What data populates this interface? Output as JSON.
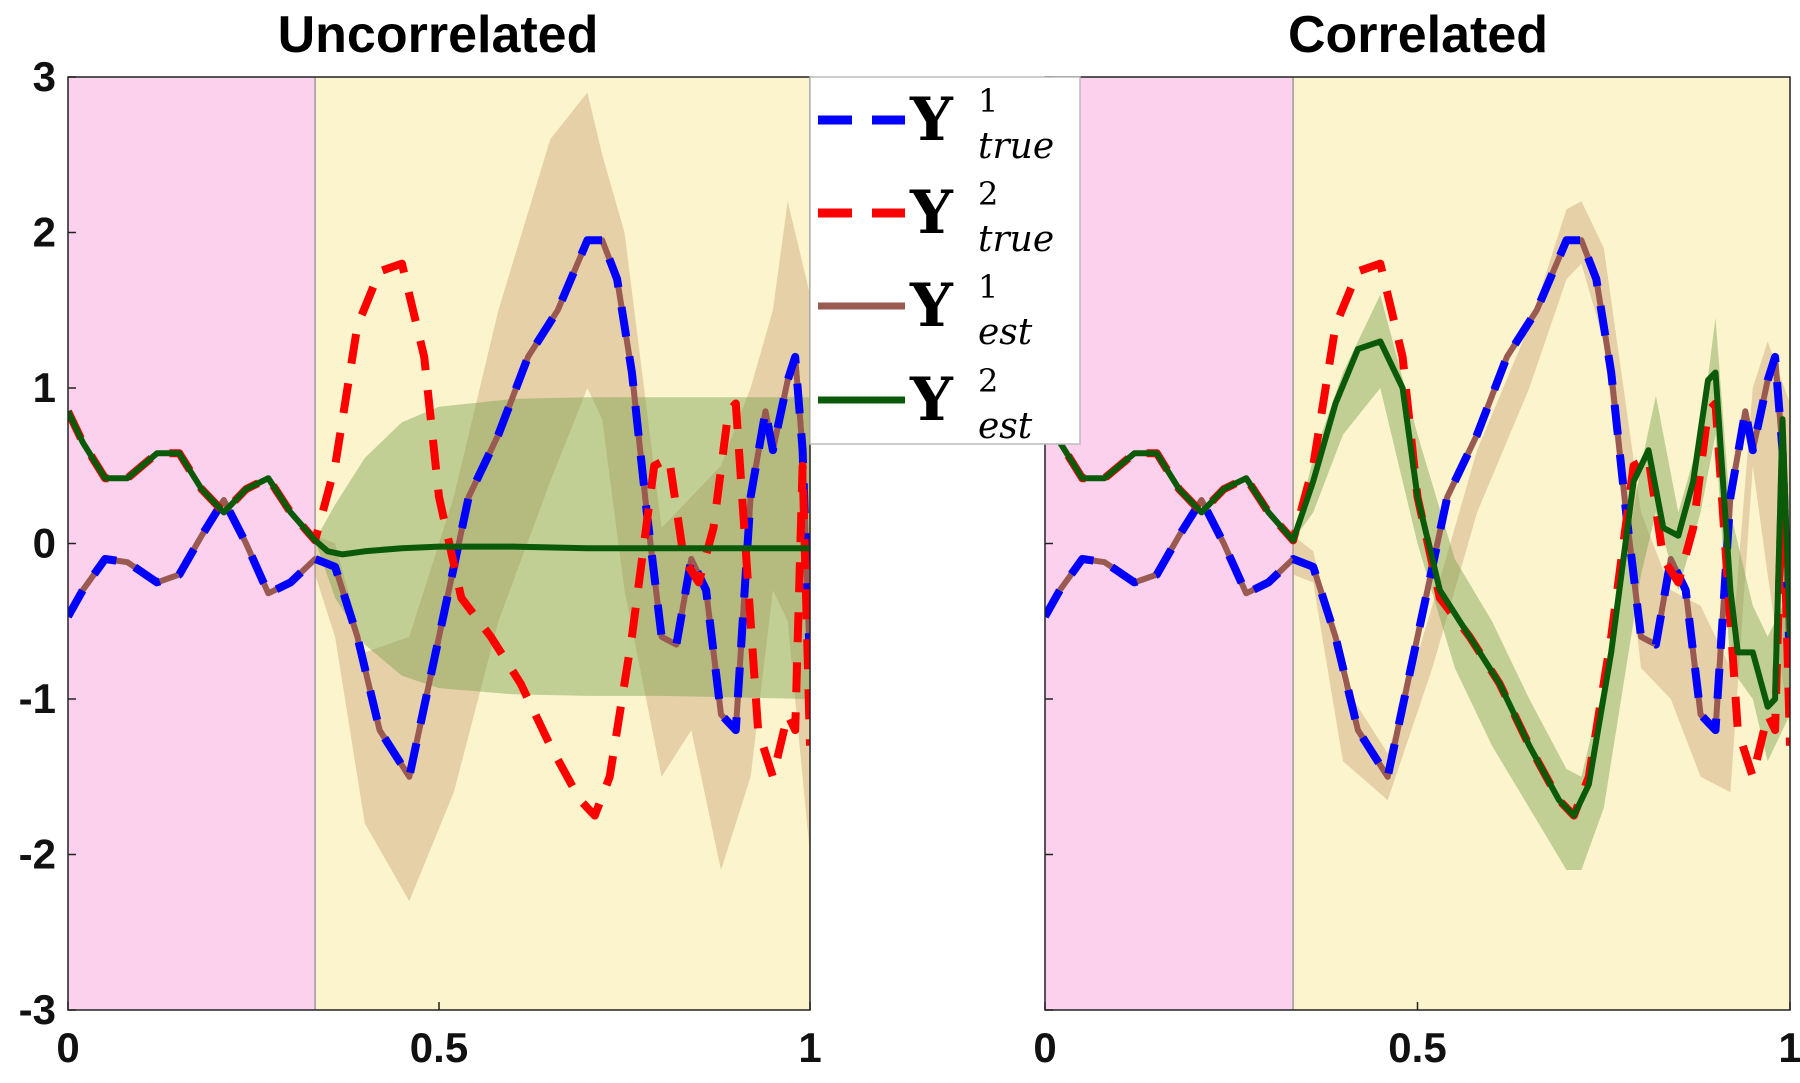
{
  "colors": {
    "region_known": "#fbd1ee",
    "region_predict": "#fbf4cc",
    "y1_true": "#0000ff",
    "y2_true": "#ff0000",
    "y1_est": "#9a5a52",
    "y2_est": "#0a5a0a",
    "band1": "#c9a47a",
    "band2": "#7aa050"
  },
  "legend": {
    "entries": [
      {
        "symbol": "Y",
        "sup": "1",
        "sub": "true",
        "style": "dashed",
        "color": "#0000ff"
      },
      {
        "symbol": "Y",
        "sup": "2",
        "sub": "true",
        "style": "dashed",
        "color": "#ff0000"
      },
      {
        "symbol": "Y",
        "sup": "1",
        "sub": "est",
        "style": "solid",
        "color": "#9a5a52"
      },
      {
        "symbol": "Y",
        "sup": "2",
        "sub": "est",
        "style": "solid",
        "color": "#0a5a0a"
      }
    ]
  },
  "chart_data": [
    {
      "type": "line",
      "title": "Uncorrelated",
      "xlim": [
        0,
        1
      ],
      "ylim": [
        -3,
        3
      ],
      "xticks": [
        "0",
        "0.5",
        "1"
      ],
      "yticks": [
        "-3",
        "-2",
        "-1",
        "0",
        "1",
        "2",
        "3"
      ],
      "shaded_regions": [
        {
          "from": 0,
          "to": 0.333,
          "color": "#fbd1ee"
        },
        {
          "from": 0.333,
          "to": 1,
          "color": "#fbf4cc"
        }
      ],
      "series": [
        {
          "key": "y1_true",
          "x": [
            0,
            0.02,
            0.05,
            0.08,
            0.12,
            0.15,
            0.18,
            0.21,
            0.24,
            0.27,
            0.3,
            0.333,
            0.36,
            0.39,
            0.42,
            0.46,
            0.5,
            0.54,
            0.58,
            0.62,
            0.66,
            0.7,
            0.72,
            0.74,
            0.76,
            0.78,
            0.8,
            0.82,
            0.84,
            0.86,
            0.88,
            0.9,
            0.92,
            0.94,
            0.95,
            0.97,
            0.98,
            0.99,
            1.0
          ],
          "y": [
            -0.47,
            -0.3,
            -0.1,
            -0.12,
            -0.25,
            -0.2,
            0.05,
            0.28,
            0.0,
            -0.32,
            -0.25,
            -0.1,
            -0.15,
            -0.6,
            -1.2,
            -1.5,
            -0.6,
            0.3,
            0.7,
            1.2,
            1.5,
            1.95,
            1.95,
            1.7,
            1.1,
            0.2,
            -0.6,
            -0.65,
            -0.1,
            -0.3,
            -1.1,
            -1.2,
            0.3,
            0.85,
            0.6,
            1.05,
            1.2,
            0.6,
            -0.8
          ]
        },
        {
          "key": "y2_true",
          "x": [
            0,
            0.02,
            0.05,
            0.08,
            0.12,
            0.15,
            0.18,
            0.21,
            0.24,
            0.27,
            0.3,
            0.333,
            0.36,
            0.39,
            0.42,
            0.45,
            0.48,
            0.5,
            0.53,
            0.57,
            0.61,
            0.65,
            0.69,
            0.71,
            0.73,
            0.76,
            0.79,
            0.81,
            0.83,
            0.85,
            0.87,
            0.89,
            0.9,
            0.92,
            0.93,
            0.95,
            0.97,
            0.98,
            0.99,
            1.0
          ],
          "y": [
            0.85,
            0.65,
            0.42,
            0.42,
            0.58,
            0.58,
            0.35,
            0.2,
            0.35,
            0.42,
            0.2,
            0.02,
            0.5,
            1.4,
            1.75,
            1.8,
            1.2,
            0.3,
            -0.35,
            -0.6,
            -0.9,
            -1.3,
            -1.65,
            -1.75,
            -1.5,
            -0.6,
            0.5,
            0.55,
            -0.1,
            -0.25,
            0.1,
            0.85,
            0.9,
            -0.5,
            -1.2,
            -1.5,
            -1.1,
            -1.2,
            0.5,
            -1.3
          ]
        },
        {
          "key": "y1_est",
          "same_as": "y1_true"
        },
        {
          "key": "y2_est",
          "x": [
            0,
            0.02,
            0.05,
            0.08,
            0.12,
            0.15,
            0.18,
            0.21,
            0.24,
            0.27,
            0.3,
            0.333,
            0.35,
            0.37,
            0.4,
            0.45,
            0.5,
            0.6,
            0.7,
            0.8,
            0.9,
            1.0
          ],
          "y": [
            0.85,
            0.65,
            0.42,
            0.42,
            0.58,
            0.58,
            0.35,
            0.2,
            0.35,
            0.42,
            0.2,
            0.02,
            -0.05,
            -0.07,
            -0.05,
            -0.03,
            -0.02,
            -0.02,
            -0.03,
            -0.03,
            -0.03,
            -0.03
          ]
        }
      ],
      "bands": [
        {
          "key": "band1",
          "x": [
            0.333,
            0.36,
            0.4,
            0.46,
            0.52,
            0.58,
            0.65,
            0.7,
            0.72,
            0.75,
            0.8,
            0.84,
            0.88,
            0.92,
            0.95,
            0.97,
            1.0
          ],
          "upper": [
            0.05,
            0.0,
            -0.7,
            -0.6,
            0.3,
            1.5,
            2.6,
            2.9,
            2.5,
            2.0,
            0.1,
            0.3,
            0.5,
            1.0,
            1.5,
            2.2,
            1.6
          ],
          "lower": [
            -0.2,
            -0.6,
            -1.8,
            -2.3,
            -1.6,
            -0.5,
            0.4,
            1.0,
            0.8,
            -0.3,
            -1.5,
            -1.2,
            -2.1,
            -1.5,
            -0.3,
            -0.5,
            -2.0
          ]
        },
        {
          "key": "band2",
          "x": [
            0.333,
            0.36,
            0.4,
            0.45,
            0.5,
            0.6,
            0.7,
            0.8,
            0.9,
            1.0
          ],
          "upper": [
            0.02,
            0.25,
            0.55,
            0.78,
            0.88,
            0.93,
            0.94,
            0.94,
            0.94,
            0.94
          ],
          "lower": [
            0.02,
            -0.35,
            -0.65,
            -0.85,
            -0.93,
            -0.97,
            -0.98,
            -0.98,
            -0.99,
            -1.0
          ]
        }
      ]
    },
    {
      "type": "line",
      "title": "Correlated",
      "xlim": [
        0,
        1
      ],
      "ylim": [
        -3,
        3
      ],
      "xticks": [
        "0",
        "0.5",
        "1"
      ],
      "yticks": [],
      "shaded_regions": [
        {
          "from": 0,
          "to": 0.333,
          "color": "#fbd1ee"
        },
        {
          "from": 0.333,
          "to": 1,
          "color": "#fbf4cc"
        }
      ],
      "series": [
        {
          "key": "y1_true",
          "same_as_panel": 0
        },
        {
          "key": "y2_true",
          "same_as_panel": 0
        },
        {
          "key": "y1_est",
          "same_as": "y1_true"
        },
        {
          "key": "y2_est",
          "x": [
            0,
            0.02,
            0.05,
            0.08,
            0.12,
            0.15,
            0.18,
            0.21,
            0.24,
            0.27,
            0.3,
            0.333,
            0.36,
            0.39,
            0.42,
            0.45,
            0.48,
            0.5,
            0.53,
            0.57,
            0.61,
            0.65,
            0.69,
            0.71,
            0.73,
            0.76,
            0.79,
            0.81,
            0.83,
            0.85,
            0.87,
            0.89,
            0.9,
            0.92,
            0.93,
            0.95,
            0.97,
            0.98,
            0.99,
            1.0
          ],
          "y": [
            0.85,
            0.65,
            0.42,
            0.42,
            0.58,
            0.58,
            0.35,
            0.2,
            0.35,
            0.42,
            0.2,
            0.02,
            0.4,
            0.9,
            1.25,
            1.3,
            1.0,
            0.3,
            -0.3,
            -0.6,
            -0.9,
            -1.3,
            -1.65,
            -1.75,
            -1.55,
            -0.7,
            0.4,
            0.6,
            0.1,
            0.05,
            0.4,
            1.05,
            1.1,
            -0.3,
            -0.7,
            -0.7,
            -1.05,
            -1.0,
            0.8,
            -0.6
          ]
        }
      ],
      "bands": [
        {
          "key": "band1",
          "x": [
            0.333,
            0.36,
            0.4,
            0.46,
            0.52,
            0.58,
            0.65,
            0.7,
            0.72,
            0.75,
            0.8,
            0.84,
            0.88,
            0.92,
            0.95,
            0.97,
            1.0
          ],
          "upper": [
            0.05,
            -0.05,
            -0.9,
            -1.35,
            -0.4,
            0.6,
            1.4,
            2.15,
            2.2,
            1.9,
            0.2,
            -0.3,
            -0.4,
            -0.8,
            1.0,
            1.3,
            0.9
          ],
          "lower": [
            -0.2,
            -0.25,
            -1.4,
            -1.65,
            -0.8,
            0.2,
            1.0,
            1.7,
            1.8,
            1.3,
            -0.8,
            -1.0,
            -1.5,
            -1.6,
            0.5,
            -0.2,
            -1.2
          ]
        },
        {
          "key": "band2",
          "x": [
            0.333,
            0.36,
            0.4,
            0.45,
            0.5,
            0.55,
            0.6,
            0.65,
            0.7,
            0.72,
            0.75,
            0.8,
            0.82,
            0.85,
            0.88,
            0.9,
            0.92,
            0.95,
            0.97,
            1.0
          ],
          "upper": [
            0.02,
            0.55,
            1.1,
            1.6,
            0.7,
            -0.1,
            -0.5,
            -1.0,
            -1.45,
            -1.5,
            -0.9,
            0.5,
            0.95,
            0.2,
            0.7,
            1.45,
            0.2,
            -0.4,
            -0.6,
            -0.3
          ],
          "lower": [
            0.02,
            0.2,
            0.7,
            1.0,
            0.0,
            -0.8,
            -1.3,
            -1.7,
            -2.1,
            -2.1,
            -1.7,
            -0.2,
            0.2,
            -0.3,
            0.2,
            0.7,
            -0.8,
            -1.0,
            -1.4,
            -1.1
          ]
        }
      ]
    }
  ]
}
